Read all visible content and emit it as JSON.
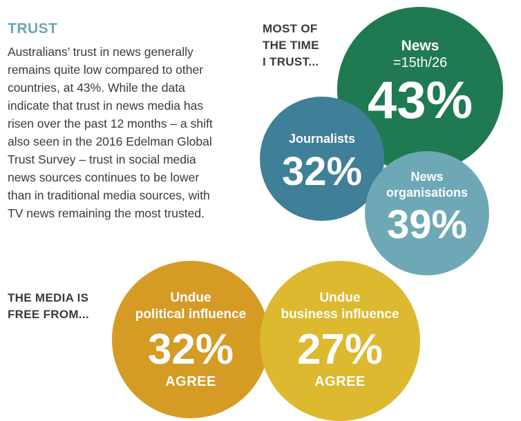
{
  "trust": {
    "heading": "TRUST",
    "body_lines": [
      "Australians’ trust in news generally",
      "remains quite low compared to other",
      "countries, at 43%. While the data",
      "indicate that trust in news media has",
      "risen over the past 12 months – a shift",
      "also seen in the 2016 Edelman Global",
      "Trust Survey – trust in social media",
      "news sources continues to be lower",
      "than in traditional media sources, with",
      "TV news remaining the most trusted."
    ]
  },
  "most_of_time": {
    "caption_lines": [
      "MOST OF",
      "THE TIME",
      "I TRUST..."
    ],
    "news": {
      "label": "News",
      "rank": "=15th/26",
      "value": "43%",
      "color": "#1f7a52"
    },
    "journalists": {
      "label": "Journalists",
      "value": "32%",
      "color": "#3f7f97"
    },
    "news_organisations": {
      "label_lines": [
        "News",
        "organisations"
      ],
      "value": "39%",
      "color": "#6ea8b6"
    }
  },
  "media_free": {
    "caption_lines": [
      "THE MEDIA IS",
      "FREE FROM..."
    ],
    "political": {
      "label_lines": [
        "Undue",
        "political influence"
      ],
      "value": "32%",
      "foot": "AGREE",
      "color": "#d59b25"
    },
    "business": {
      "label_lines": [
        "Undue",
        "business influence"
      ],
      "value": "27%",
      "foot": "AGREE",
      "color": "#dcb92e"
    }
  }
}
